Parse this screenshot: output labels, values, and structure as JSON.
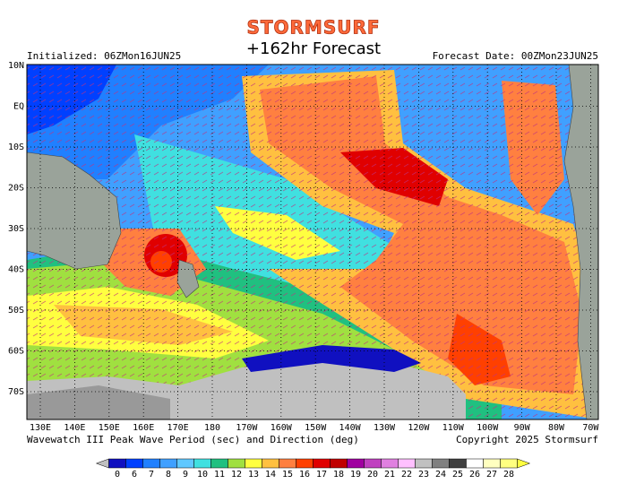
{
  "header": {
    "logo": "STORMSURF",
    "title": "+162hr Forecast",
    "initialized": "Initialized: 06ZMon16JUN25",
    "forecast_date": "Forecast Date: 00ZMon23JUN25"
  },
  "map": {
    "lat_labels": [
      "10N",
      "EQ",
      "10S",
      "20S",
      "30S",
      "40S",
      "50S",
      "60S",
      "70S"
    ],
    "lon_labels": [
      "130E",
      "140E",
      "150E",
      "160E",
      "170E",
      "180",
      "170W",
      "160W",
      "150W",
      "140W",
      "130W",
      "120W",
      "110W",
      "100W",
      "90W",
      "80W",
      "70W"
    ]
  },
  "footer": {
    "caption": "Wavewatch III Peak Wave Period (sec) and Direction (deg)",
    "copyright": "Copyright 2025 Stormsurf"
  },
  "legend": {
    "items": [
      {
        "value": 0,
        "color": "#1010c0"
      },
      {
        "value": 6,
        "color": "#0040ff"
      },
      {
        "value": 7,
        "color": "#2080ff"
      },
      {
        "value": 8,
        "color": "#40a0ff"
      },
      {
        "value": 9,
        "color": "#60c8ff"
      },
      {
        "value": 10,
        "color": "#40e0e0"
      },
      {
        "value": 11,
        "color": "#20c080"
      },
      {
        "value": 12,
        "color": "#a0e040"
      },
      {
        "value": 13,
        "color": "#ffff40"
      },
      {
        "value": 14,
        "color": "#ffc040"
      },
      {
        "value": 15,
        "color": "#ff8040"
      },
      {
        "value": 16,
        "color": "#ff4000"
      },
      {
        "value": 17,
        "color": "#e00000"
      },
      {
        "value": 18,
        "color": "#c00000"
      },
      {
        "value": 19,
        "color": "#a000a0"
      },
      {
        "value": 20,
        "color": "#c040c0"
      },
      {
        "value": 21,
        "color": "#e080e0"
      },
      {
        "value": 22,
        "color": "#ffc0ff"
      },
      {
        "value": 23,
        "color": "#c0c0c0"
      },
      {
        "value": 24,
        "color": "#808080"
      },
      {
        "value": 25,
        "color": "#404040"
      },
      {
        "value": 26,
        "color": "#ffffff"
      },
      {
        "value": 27,
        "color": "#ffffc0"
      },
      {
        "value": 28,
        "color": "#ffff80"
      }
    ]
  }
}
